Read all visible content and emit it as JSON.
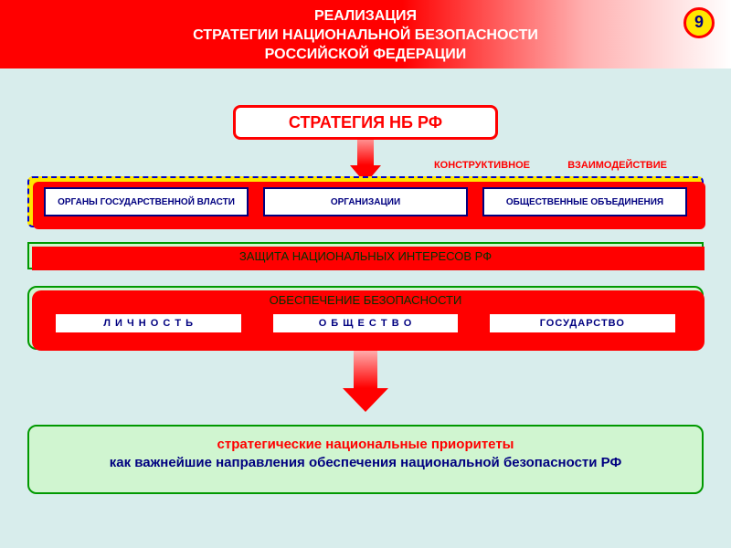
{
  "header": {
    "line1": "РЕАЛИЗАЦИЯ",
    "line2": "СТРАТЕГИИ НАЦИОНАЛЬНОЙ БЕЗОПАСНОСТИ",
    "line3": "РОССИЙСКОЙ ФЕДЕРАЦИИ",
    "slide_number": "9",
    "bg_gradient_from": "#ff0000",
    "bg_gradient_to": "#ffffff",
    "text_color": "#ffffff",
    "badge_bg": "#ffe600",
    "badge_border": "#ff0000",
    "badge_text_color": "#000080"
  },
  "strategy": {
    "label": "СТРАТЕГИЯ НБ  РФ",
    "border_color": "#ff0000",
    "text_color": "#ff0000",
    "bg": "#ffffff"
  },
  "annotations": {
    "left": "КОНСТРУКТИВНОЕ",
    "right": "ВЗАИМОДЕЙСТВИЕ",
    "color": "#ff0000"
  },
  "actors": {
    "container_bg": "#ffe600",
    "container_border": "#0000cc",
    "shadow_color": "#ff0000",
    "box_border": "#000080",
    "box_bg": "#ffffff",
    "box_text_color": "#000080",
    "items": [
      "ОРГАНЫ ГОСУДАРСТВЕННОЙ ВЛАСТИ",
      "ОРГАНИЗАЦИИ",
      "ОБЩЕСТВЕННЫЕ ОБЪЕДИНЕНИЯ"
    ]
  },
  "protection": {
    "label": "ЗАЩИТА НАЦИОНАЛЬНЫХ ИНТЕРЕСОВ РФ",
    "bg": "#d0f5d0",
    "border": "#009900",
    "shadow": "#ff0000"
  },
  "security": {
    "title": "ОБЕСПЕЧЕНИЕ БЕЗОПАСНОСТИ",
    "bg": "#d0f5d0",
    "border": "#009900",
    "item_border": "#ff0000",
    "item_bg": "#ffffff",
    "item_text_color": "#000080",
    "items": [
      "Л И Ч Н О С Т Ь",
      "О Б Щ Е С Т В О",
      "ГОСУДАРСТВО"
    ]
  },
  "priorities": {
    "line1": "стратегические национальные приоритеты",
    "line2": "как важнейшие направления обеспечения национальной безопасности РФ",
    "bg": "#d0f5d0",
    "border": "#009900",
    "line1_color": "#ff0000",
    "line2_color": "#000080"
  },
  "arrows": {
    "fill_top": "#ffb0b0",
    "fill_bottom": "#ff0000"
  },
  "page_bg": "#d8edec"
}
